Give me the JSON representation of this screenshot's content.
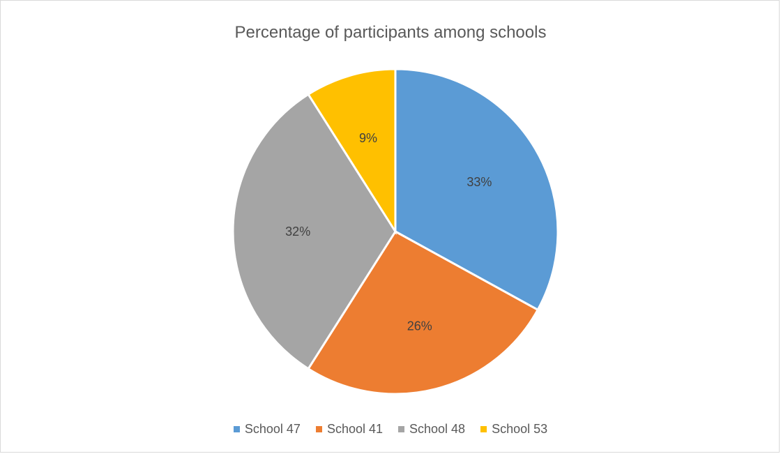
{
  "chart_data": {
    "type": "pie",
    "title": "Percentage of participants among schools",
    "categories": [
      "School 47",
      "School 41",
      "School 48",
      "School 53"
    ],
    "values": [
      33,
      26,
      32,
      9
    ],
    "data_labels": [
      "33%",
      "26%",
      "32%",
      "9%"
    ],
    "colors": [
      "#5b9bd5",
      "#ed7d31",
      "#a5a5a5",
      "#ffc000"
    ],
    "legend_position": "bottom"
  }
}
